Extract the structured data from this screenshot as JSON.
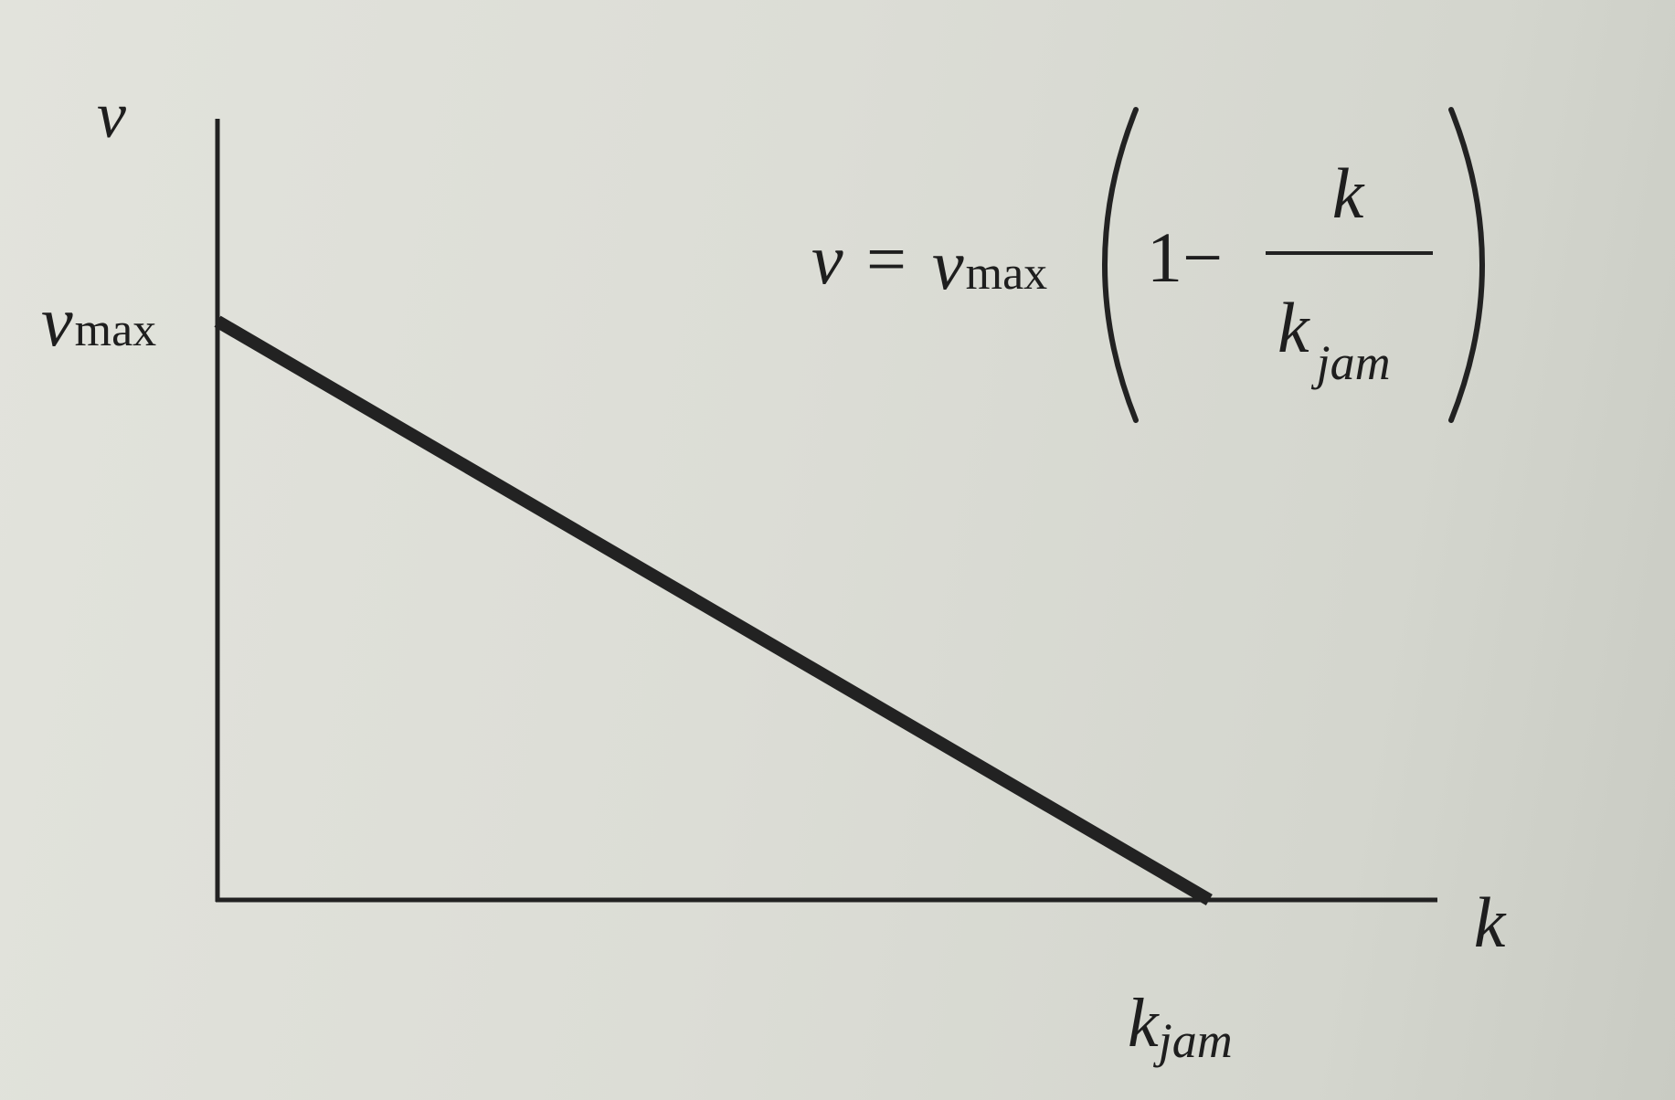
{
  "chart_data": {
    "type": "line",
    "title": "",
    "xlabel": "k",
    "ylabel": "v",
    "x_tick_labels": {
      "kjam": {
        "main": "k",
        "sub": "jam"
      }
    },
    "y_tick_labels": {
      "vmax": {
        "main": "v",
        "sub": "max"
      }
    },
    "series": [
      {
        "points": [
          {
            "x": 0,
            "y": 1
          },
          {
            "x": 1,
            "y": 0
          }
        ]
      }
    ],
    "xlim": [
      0,
      1.23
    ],
    "ylim": [
      0,
      1.35
    ],
    "grid": false,
    "annotations": {
      "equation": {
        "lhs": "v",
        "equals": "=",
        "v": "v",
        "vsub": "max",
        "one_minus": "1−",
        "numerator": "k",
        "denom_main": "k",
        "denom_sub": "jam"
      }
    }
  },
  "colors": {
    "ink": "#1e1e1e",
    "line": "#222222"
  }
}
